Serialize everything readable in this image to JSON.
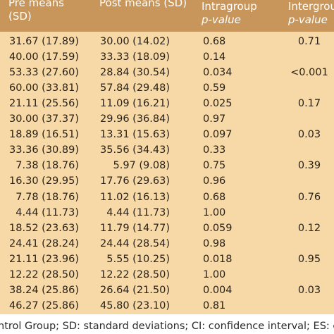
{
  "header": {
    "pre_line1": "Pre means",
    "pre_line2": "(SD)",
    "post_line1": "Post means (SD)",
    "intra_line1": "Intragroup",
    "intra_line2": "p-value",
    "inter_line1": "Intergrou",
    "inter_line2": "p-value"
  },
  "rows": [
    {
      "pre": "31.67 (17.89)",
      "post": "30.00 (14.02)",
      "intra": "0.68",
      "inter": "0.71"
    },
    {
      "pre": "40.00 (17.59)",
      "post": "33.33 (18.09)",
      "intra": "0.14",
      "inter": ""
    },
    {
      "pre": "53.33 (27.60)",
      "post": "28.84 (30.54)",
      "intra": "0.034",
      "inter": "<0.001"
    },
    {
      "pre": "60.00 (33.81)",
      "post": "57.84 (29.48)",
      "intra": "0.59",
      "inter": ""
    },
    {
      "pre": "21.11 (25.56)",
      "post": "11.09 (16.21)",
      "intra": "0.025",
      "inter": "0.17"
    },
    {
      "pre": "30.00 (37.37)",
      "post": "29.96 (36.84)",
      "intra": "0.97",
      "inter": ""
    },
    {
      "pre": "18.89 (16.51)",
      "post": "13.31 (15.63)",
      "intra": "0.097",
      "inter": "0.03"
    },
    {
      "pre": "33.36 (30.89)",
      "post": "35.56 (34.43)",
      "intra": "0.33",
      "inter": ""
    },
    {
      "pre": "7.38 (18.76)",
      "post": "5.97 (9.08)",
      "intra": "0.75",
      "inter": "0.39"
    },
    {
      "pre": "16.30 (29.95)",
      "post": "17.76 (29.63)",
      "intra": "0.96",
      "inter": ""
    },
    {
      "pre": "7.78 (18.76)",
      "post": "11.02 (16.13)",
      "intra": "0.68",
      "inter": "0.76"
    },
    {
      "pre": "4.44 (11.73)",
      "post": "4.44 (11.73)",
      "intra": "1.00",
      "inter": ""
    },
    {
      "pre": "18.52 (23.63)",
      "post": "11.79 (14.77)",
      "intra": "0.059",
      "inter": "0.12"
    },
    {
      "pre": "24.41 (28.24)",
      "post": "24.44 (28.54)",
      "intra": "0.98",
      "inter": ""
    },
    {
      "pre": "21.11 (23.96)",
      "post": "5.55 (10.25)",
      "intra": "0.018",
      "inter": "0.95"
    },
    {
      "pre": "12.22 (28.50)",
      "post": "12.22 (28.50)",
      "intra": "1.00",
      "inter": ""
    },
    {
      "pre": "38.24 (25.86)",
      "post": "26.64 (21.50)",
      "intra": "0.004",
      "inter": "0.03"
    },
    {
      "pre": "46.27 (25.86)",
      "post": "45.80 (23.10)",
      "intra": "0.81",
      "inter": ""
    }
  ],
  "footer": {
    "text": "ntrol Group; SD: standard deviations; CI: confidence interval; ES: ef"
  },
  "colors": {
    "header_bg": "#c8965a",
    "body_bg": "#f6d9a6"
  }
}
